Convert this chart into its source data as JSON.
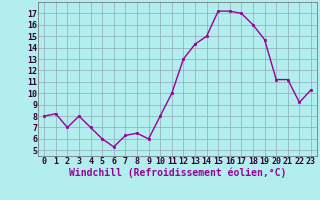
{
  "x": [
    0,
    1,
    2,
    3,
    4,
    5,
    6,
    7,
    8,
    9,
    10,
    11,
    12,
    13,
    14,
    15,
    16,
    17,
    18,
    19,
    20,
    21,
    22,
    23
  ],
  "y": [
    8,
    8.2,
    7,
    8,
    7,
    6,
    5.3,
    6.3,
    6.5,
    6,
    8,
    10,
    13,
    14.3,
    15,
    17.2,
    17.2,
    17,
    16,
    14.7,
    11.2,
    11.2,
    9.2,
    10.3
  ],
  "line_color": "#990099",
  "marker": "s",
  "marker_size": 2.0,
  "background_color": "#b2eeee",
  "grid_color": "#90a8b8",
  "xlabel": "Windchill (Refroidissement éolien,°C)",
  "xlabel_fontsize": 7,
  "ylabel_ticks": [
    5,
    6,
    7,
    8,
    9,
    10,
    11,
    12,
    13,
    14,
    15,
    16,
    17
  ],
  "xlim": [
    -0.5,
    23.5
  ],
  "ylim": [
    4.5,
    18.0
  ],
  "tick_fontsize": 6.0,
  "linewidth": 1.0
}
